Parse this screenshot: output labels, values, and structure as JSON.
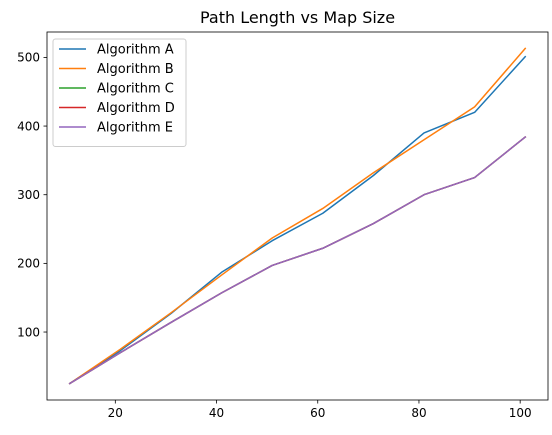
{
  "chart_data": {
    "type": "line",
    "title": "Path Length vs Map Size",
    "xlabel": "",
    "ylabel": "",
    "x": [
      11,
      21,
      31,
      41,
      51,
      61,
      71,
      81,
      91,
      101
    ],
    "xlim": [
      6.5,
      105.5
    ],
    "ylim": [
      1,
      537
    ],
    "xticks": [
      20,
      40,
      60,
      80,
      100
    ],
    "yticks": [
      100,
      200,
      300,
      400,
      500
    ],
    "grid": false,
    "legend_position": "top-left",
    "series": [
      {
        "name": "Algorithm A",
        "color": "#1f77b4",
        "values": [
          25,
          73,
          127,
          187,
          233,
          273,
          328,
          390,
          420,
          501
        ]
      },
      {
        "name": "Algorithm B",
        "color": "#ff7f0e",
        "values": [
          25,
          75,
          128,
          183,
          237,
          280,
          332,
          380,
          428,
          513
        ]
      },
      {
        "name": "Algorithm C",
        "color": "#2ca02c",
        "values": [
          25,
          70,
          114,
          157,
          197,
          222,
          258,
          300,
          325,
          384
        ]
      },
      {
        "name": "Algorithm D",
        "color": "#d62728",
        "values": [
          25,
          70,
          114,
          157,
          197,
          222,
          258,
          300,
          325,
          384
        ]
      },
      {
        "name": "Algorithm E",
        "color": "#9467bd",
        "values": [
          25,
          70,
          114,
          157,
          197,
          222,
          258,
          300,
          325,
          384
        ]
      }
    ]
  }
}
